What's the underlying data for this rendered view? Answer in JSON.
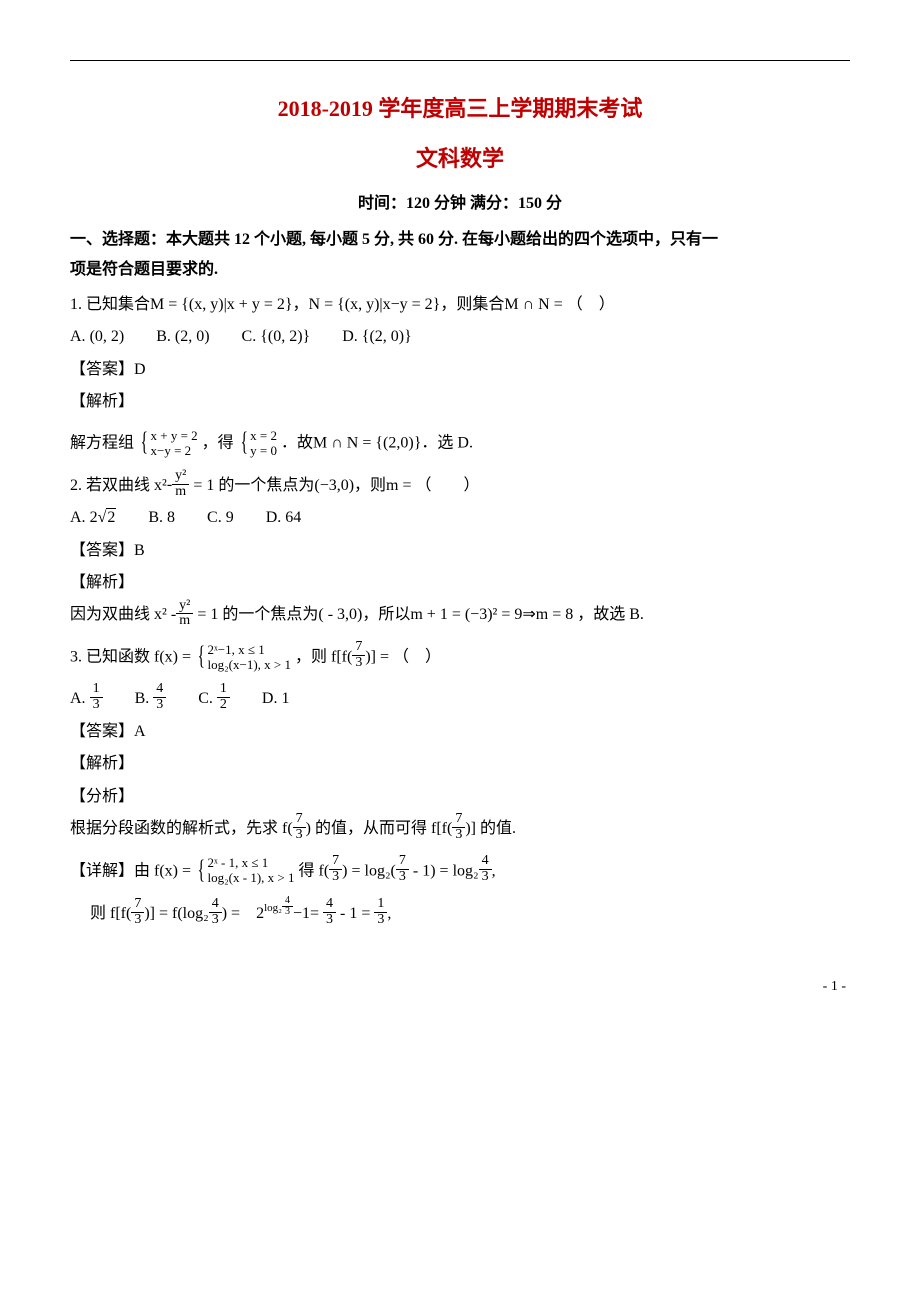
{
  "colors": {
    "accent": "#c00000",
    "text": "#000000",
    "bg": "#ffffff"
  },
  "title_main": "2018-2019 学年度高三上学期期末考试",
  "title_sub": "文科数学",
  "exam_meta": "时间：120 分钟  满分：150 分",
  "section1_heading_l1": "一、选择题：本大题共 12 个小题, 每小题 5 分, 共 60 分. 在每小题给出的四个选项中，只有一",
  "section1_heading_l2": "项是符合题目要求的.",
  "q1_stem": "1. 已知集合M = {(x, y)|x + y = 2}，N = {(x, y)|x−y = 2}，则集合M ∩ N = （　）",
  "q1_optA": "(0, 2)",
  "q1_optB": "(2, 0)",
  "q1_optC": "{(0, 2)}",
  "q1_optD": "{(2, 0)}",
  "q1_ans": "【答案】D",
  "q1_exp_h": "【解析】",
  "q1_exp_pre": "解方程组",
  "q1_sys1_r1": "x + y = 2",
  "q1_sys1_r2": "x−y = 2",
  "q1_exp_mid": " ，得",
  "q1_sys2_r1": "x = 2",
  "q1_sys2_r2": "y = 0",
  "q1_exp_tail": " ．故M ∩ N = {(2,0)}．选 D.",
  "q2_pre": "2. 若双曲线",
  "q2_eq_left": "x²",
  "q2_eq_num": "y²",
  "q2_eq_den": "m",
  "q2_eq_eq": "= 1",
  "q2_post": " 的一个焦点为(−3,0)，则m = （　　）",
  "q2_optA": "2",
  "q2_sqrt": "2",
  "q2_optB": "8",
  "q2_optC": "9",
  "q2_optD": "64",
  "q2_ans": "【答案】B",
  "q2_exp_h": "【解析】",
  "q2_exp_pre": "因为双曲线",
  "q2_exp_eq_left": "x² -",
  "q2_exp_num": "y²",
  "q2_exp_den": "m",
  "q2_exp_eq": "= 1",
  "q2_exp_post": " 的一个焦点为( - 3,0)，所以m + 1 = (−3)² = 9⇒m = 8 ，故选 B.",
  "q3_pre": "3. 已知函数",
  "q3_fx": "f(x) =",
  "q3_case1": "2ˣ−1, x ≤ 1",
  "q3_case2": "log₂(x−1), x > 1",
  "q3_mid": " ，则",
  "q3_ff_pre": "f[f(",
  "q3_ff_num": "7",
  "q3_ff_den": "3",
  "q3_ff_post": ")] =",
  "q3_tail": " （　）",
  "q3_optA_num": "1",
  "q3_optA_den": "3",
  "q3_optB_num": "4",
  "q3_optB_den": "3",
  "q3_optC_num": "1",
  "q3_optC_den": "2",
  "q3_optD": "1",
  "q3_ans": "【答案】A",
  "q3_exp_h": "【解析】",
  "q3_ana_h": "【分析】",
  "q3_ana_pre": "根据分段函数的解析式，先求",
  "q3_ana_f1_pre": "f(",
  "q3_ana_f1_num": "7",
  "q3_ana_f1_den": "3",
  "q3_ana_f1_post": ")",
  "q3_ana_mid": "的值，从而可得",
  "q3_ana_f2_pre": "f[f(",
  "q3_ana_f2_num": "7",
  "q3_ana_f2_den": "3",
  "q3_ana_f2_post": ")]",
  "q3_ana_tail": "的值.",
  "q3_det_h": "【详解】由",
  "q3_det_fx": "f(x) =",
  "q3_det_c1": "2ˣ - 1, x ≤ 1",
  "q3_det_c2": "log₂(x - 1), x > 1",
  "q3_det_mid1": " 得",
  "q3_det_f73_pre": "f(",
  "q3_det_f73_num": "7",
  "q3_det_f73_den": "3",
  "q3_det_f73_post": ")",
  "q3_det_eq1": "=",
  "q3_det_log_pre": "log₂(",
  "q3_det_log_num": "7",
  "q3_det_log_den": "3",
  "q3_det_log_post": " - 1)",
  "q3_det_eq2": "=",
  "q3_det_log2_pre": "log₂",
  "q3_det_log2_num": "4",
  "q3_det_log2_den": "3",
  "q3_det_comma": ",",
  "q3_line2_pre": "则",
  "q3_l2_ff_pre": "f[f(",
  "q3_l2_ff_num": "7",
  "q3_l2_ff_den": "3",
  "q3_l2_ff_post": ")]",
  "q3_l2_eq1": "=",
  "q3_l2_flog_pre": "f(log₂",
  "q3_l2_flog_num": "4",
  "q3_l2_flog_den": "3",
  "q3_l2_flog_post": ") =",
  "q3_l2_pow_base": "2",
  "q3_l2_pow_exp_pre": "log₂",
  "q3_l2_pow_exp_num": "4",
  "q3_l2_pow_exp_den": "3",
  "q3_l2_m1": "−1=",
  "q3_l2_r1_num": "4",
  "q3_l2_r1_den": "3",
  "q3_l2_m2": " - 1 = ",
  "q3_l2_r2_num": "1",
  "q3_l2_r2_den": "3",
  "q3_l2_tail": ",",
  "page_no": "- 1 -"
}
